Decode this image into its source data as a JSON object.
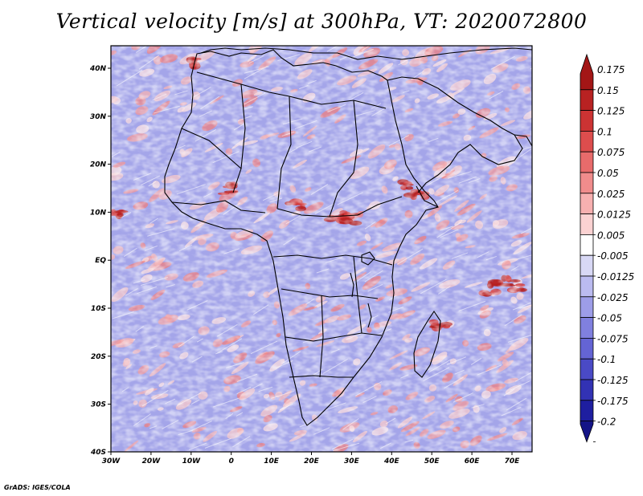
{
  "title": "Vertical velocity [m/s] at 300hPa, VT: 2020072800",
  "credit": "GrADS: IGES/COLA",
  "map": {
    "lat_labels": [
      "40N",
      "30N",
      "20N",
      "10N",
      "EQ",
      "10S",
      "20S",
      "30S",
      "40S"
    ],
    "lon_labels": [
      "30W",
      "20W",
      "10W",
      "0",
      "10E",
      "20E",
      "30E",
      "40E",
      "50E",
      "60E",
      "70E"
    ],
    "lon_range": [
      -30,
      75
    ],
    "lat_range": [
      -40,
      45
    ]
  },
  "colorbar": {
    "labels": [
      "0.175",
      "0.15",
      "0.125",
      "0.1",
      "0.075",
      "0.05",
      "0.025",
      "0.0125",
      "0.005",
      "-0.005",
      "-0.0125",
      "-0.025",
      "-0.05",
      "-0.075",
      "-0.1",
      "-0.125",
      "-0.175",
      "-0.2"
    ],
    "colors": [
      "#a31616",
      "#b82222",
      "#cc3333",
      "#dd4d4d",
      "#e86b6b",
      "#f08c8c",
      "#f7b0b0",
      "#fbd2d2",
      "#ffffff",
      "#d8d8f5",
      "#bbbbf0",
      "#9d9de8",
      "#8080df",
      "#6464d4",
      "#4a4ac6",
      "#3232b4",
      "#1e1ea0",
      "#141487"
    ]
  }
}
